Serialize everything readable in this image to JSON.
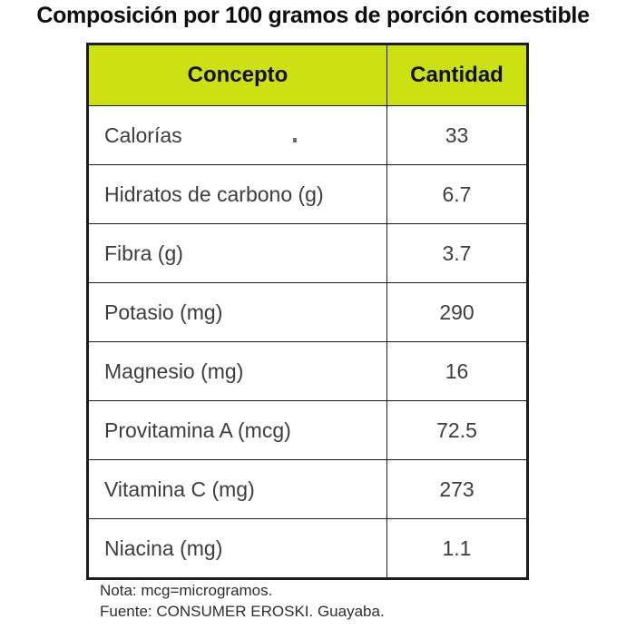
{
  "chart_data": {
    "type": "table",
    "title": "Composición por 100 gramos de porción comestible",
    "columns": [
      "Concepto",
      "Cantidad"
    ],
    "rows": [
      [
        "Calorías",
        33
      ],
      [
        "Hidratos de carbono (g)",
        6.7
      ],
      [
        "Fibra (g)",
        3.7
      ],
      [
        "Potasio (mg)",
        290
      ],
      [
        "Magnesio (mg)",
        16
      ],
      [
        "Provitamina A (mcg)",
        72.5
      ],
      [
        "Vitamina C (mg)",
        273
      ],
      [
        "Niacina (mg)",
        1.1
      ]
    ],
    "header_bg": "#cde013",
    "border_color": "#1c1c1c",
    "grid": "full-borders",
    "legend_position": "none"
  },
  "footer": {
    "note": "Nota: mcg=microgramos.",
    "source": "Fuente: CONSUMER EROSKI. Guayaba."
  }
}
